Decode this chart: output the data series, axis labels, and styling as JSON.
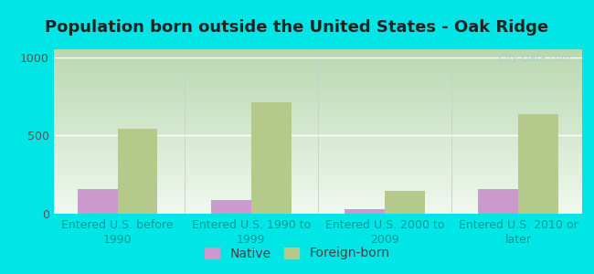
{
  "title": "Population born outside the United States - Oak Ridge",
  "categories": [
    "Entered U.S. before\n1990",
    "Entered U.S. 1990 to\n1999",
    "Entered U.S. 2000 to\n2009",
    "Entered U.S. 2010 or\nlater"
  ],
  "native_values": [
    155,
    90,
    30,
    155
  ],
  "foreign_values": [
    540,
    710,
    145,
    635
  ],
  "native_color": "#cc99cc",
  "foreign_color": "#b5c98a",
  "ylim": [
    0,
    1050
  ],
  "yticks": [
    0,
    500,
    1000
  ],
  "background_outer": "#00e5e5",
  "gradient_top": "#b8d8b0",
  "gradient_bottom": "#f0f8ee",
  "bar_width": 0.3,
  "watermark": "City-Data.com",
  "xlabel_color": "#009999",
  "ytick_color": "#555555",
  "title_fontsize": 13,
  "title_color": "#222222",
  "legend_fontsize": 10,
  "tick_fontsize": 9
}
